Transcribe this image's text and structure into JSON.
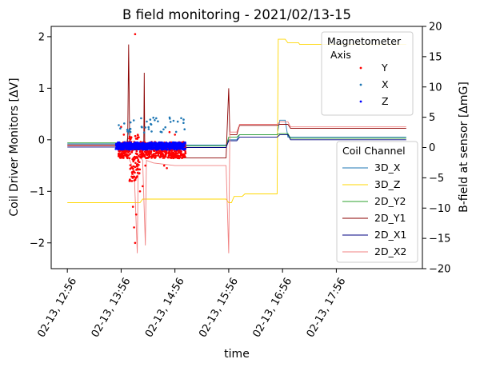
{
  "chart_data": {
    "type": "line",
    "title": "B field monitoring - 2021/02/13-15",
    "xlabel": "time",
    "ylabel_left": "Coil Driver Monitors [ΔV]",
    "ylabel_right": "B-field at sensor [ΔmG]",
    "xlim": [
      -0.3,
      6.6
    ],
    "ylim_left": [
      -2.5,
      2.2
    ],
    "ylim_right": [
      -20,
      20
    ],
    "x_ticks": [
      {
        "value": 0,
        "label": "02-13, 12:56"
      },
      {
        "value": 1,
        "label": "02-13, 13:56"
      },
      {
        "value": 2,
        "label": "02-13, 14:56"
      },
      {
        "value": 3,
        "label": "02-13, 15:56"
      },
      {
        "value": 4,
        "label": "02-13, 16:56"
      },
      {
        "value": 5,
        "label": "02-13, 17:56"
      }
    ],
    "y_ticks_left": [
      -2,
      -1,
      0,
      1,
      2
    ],
    "y_ticks_right": [
      -20,
      -15,
      -10,
      -5,
      0,
      5,
      10,
      15,
      20
    ],
    "legend_coil": {
      "title": "Coil Channel",
      "placement": "right",
      "entries": [
        "3D_X",
        "3D_Z",
        "2D_Y2",
        "2D_Y1",
        "2D_X1",
        "2D_X2"
      ]
    },
    "legend_magnetometer": {
      "title_line1": "Magnetometer",
      "title_line2": " Axis",
      "placement": "top-right",
      "entries": [
        "Y",
        "X",
        "Z"
      ]
    },
    "coil_series": [
      {
        "name": "3D_X",
        "color": "#1f77b4",
        "points": [
          [
            0,
            -0.08
          ],
          [
            0.95,
            -0.08
          ],
          [
            1.1,
            -0.09
          ],
          [
            1.15,
            0.22
          ],
          [
            1.17,
            -0.1
          ],
          [
            2,
            -0.1
          ],
          [
            2.95,
            -0.1
          ],
          [
            3.0,
            0.0
          ],
          [
            3.15,
            0.0
          ],
          [
            3.2,
            0.1
          ],
          [
            3.9,
            0.1
          ],
          [
            3.95,
            0.38
          ],
          [
            4.05,
            0.38
          ],
          [
            4.1,
            0.05
          ],
          [
            6.3,
            0.05
          ]
        ]
      },
      {
        "name": "3D_Z",
        "color": "#ffd700",
        "points": [
          [
            0,
            -1.22
          ],
          [
            1.35,
            -1.22
          ],
          [
            1.4,
            -1.15
          ],
          [
            2.95,
            -1.15
          ],
          [
            3.0,
            -1.22
          ],
          [
            3.05,
            -1.22
          ],
          [
            3.1,
            -1.1
          ],
          [
            3.25,
            -1.1
          ],
          [
            3.3,
            -1.05
          ],
          [
            3.9,
            -1.05
          ],
          [
            3.92,
            1.95
          ],
          [
            4.05,
            1.95
          ],
          [
            4.1,
            1.88
          ],
          [
            4.3,
            1.88
          ],
          [
            4.32,
            1.85
          ],
          [
            6.3,
            1.85
          ]
        ]
      },
      {
        "name": "2D_Y2",
        "color": "#2ca02c",
        "points": [
          [
            0,
            -0.06
          ],
          [
            1.0,
            -0.06
          ],
          [
            1.05,
            -0.12
          ],
          [
            2.0,
            -0.12
          ],
          [
            2.95,
            -0.12
          ],
          [
            3.0,
            0.05
          ],
          [
            3.15,
            0.05
          ],
          [
            3.2,
            0.1
          ],
          [
            3.9,
            0.1
          ],
          [
            3.95,
            0.12
          ],
          [
            4.1,
            0.12
          ],
          [
            4.15,
            0.03
          ],
          [
            6.3,
            0.03
          ]
        ]
      },
      {
        "name": "2D_Y1",
        "color": "#8b0000",
        "points": [
          [
            0,
            -0.1
          ],
          [
            1.05,
            -0.1
          ],
          [
            1.12,
            -0.2
          ],
          [
            1.14,
            1.85
          ],
          [
            1.16,
            -0.2
          ],
          [
            1.3,
            -0.2
          ],
          [
            1.42,
            -0.15
          ],
          [
            1.43,
            1.3
          ],
          [
            1.44,
            -0.2
          ],
          [
            1.6,
            -0.3
          ],
          [
            2.0,
            -0.35
          ],
          [
            2.95,
            -0.35
          ],
          [
            3.0,
            1.0
          ],
          [
            3.02,
            0.1
          ],
          [
            3.15,
            0.1
          ],
          [
            3.2,
            0.28
          ],
          [
            3.9,
            0.28
          ],
          [
            3.95,
            0.3
          ],
          [
            4.1,
            0.3
          ],
          [
            4.15,
            0.22
          ],
          [
            6.3,
            0.22
          ]
        ]
      },
      {
        "name": "2D_X1",
        "color": "#000080",
        "points": [
          [
            0,
            -0.14
          ],
          [
            1.0,
            -0.14
          ],
          [
            1.05,
            -0.15
          ],
          [
            2.0,
            -0.15
          ],
          [
            2.95,
            -0.15
          ],
          [
            3.0,
            -0.02
          ],
          [
            3.15,
            -0.02
          ],
          [
            3.2,
            0.05
          ],
          [
            3.9,
            0.05
          ],
          [
            3.95,
            0.1
          ],
          [
            4.1,
            0.1
          ],
          [
            4.15,
            0.0
          ],
          [
            6.3,
            0.0
          ]
        ]
      },
      {
        "name": "2D_X2",
        "color": "#f08080",
        "points": [
          [
            0,
            -0.12
          ],
          [
            1.05,
            -0.12
          ],
          [
            1.2,
            -0.5
          ],
          [
            1.25,
            -0.8
          ],
          [
            1.3,
            -2.2
          ],
          [
            1.32,
            -0.3
          ],
          [
            1.4,
            -0.4
          ],
          [
            1.45,
            -2.05
          ],
          [
            1.47,
            -0.4
          ],
          [
            1.6,
            -0.45
          ],
          [
            2.0,
            -0.5
          ],
          [
            2.95,
            -0.5
          ],
          [
            3.0,
            -2.2
          ],
          [
            3.02,
            0.15
          ],
          [
            3.15,
            0.15
          ],
          [
            3.2,
            0.3
          ],
          [
            3.9,
            0.3
          ],
          [
            3.95,
            0.35
          ],
          [
            4.1,
            0.35
          ],
          [
            4.15,
            0.25
          ],
          [
            6.3,
            0.25
          ]
        ]
      }
    ],
    "magnetometer_series": [
      {
        "name": "Y",
        "color": "#ff0000",
        "marker": "dot",
        "x_range": [
          0.95,
          2.2
        ],
        "y_center": -0.2,
        "points": [
          [
            1.26,
            2.35
          ],
          [
            1.26,
            2.05
          ],
          [
            1.2,
            -0.8
          ],
          [
            1.22,
            -1.3
          ],
          [
            1.24,
            -1.7
          ],
          [
            1.26,
            -2.0
          ],
          [
            1.28,
            -1.45
          ],
          [
            1.35,
            -1.0
          ],
          [
            1.4,
            -0.9
          ],
          [
            1.45,
            -0.5
          ],
          [
            1.0,
            0.25
          ],
          [
            1.05,
            0.1
          ],
          [
            1.9,
            0.15
          ],
          [
            2.0,
            0.1
          ],
          [
            1.85,
            -0.2
          ],
          [
            1.75,
            -0.2
          ],
          [
            1.8,
            -0.5
          ],
          [
            1.85,
            -0.55
          ]
        ]
      },
      {
        "name": "X",
        "color": "#1f77b4",
        "marker": "dot",
        "x_range": [
          0.95,
          2.2
        ],
        "y_center": 0.3,
        "points": []
      },
      {
        "name": "Z",
        "color": "#0000ff",
        "marker": "dot",
        "x_range": [
          0.9,
          2.2
        ],
        "y_center": -0.12,
        "points": []
      }
    ]
  }
}
